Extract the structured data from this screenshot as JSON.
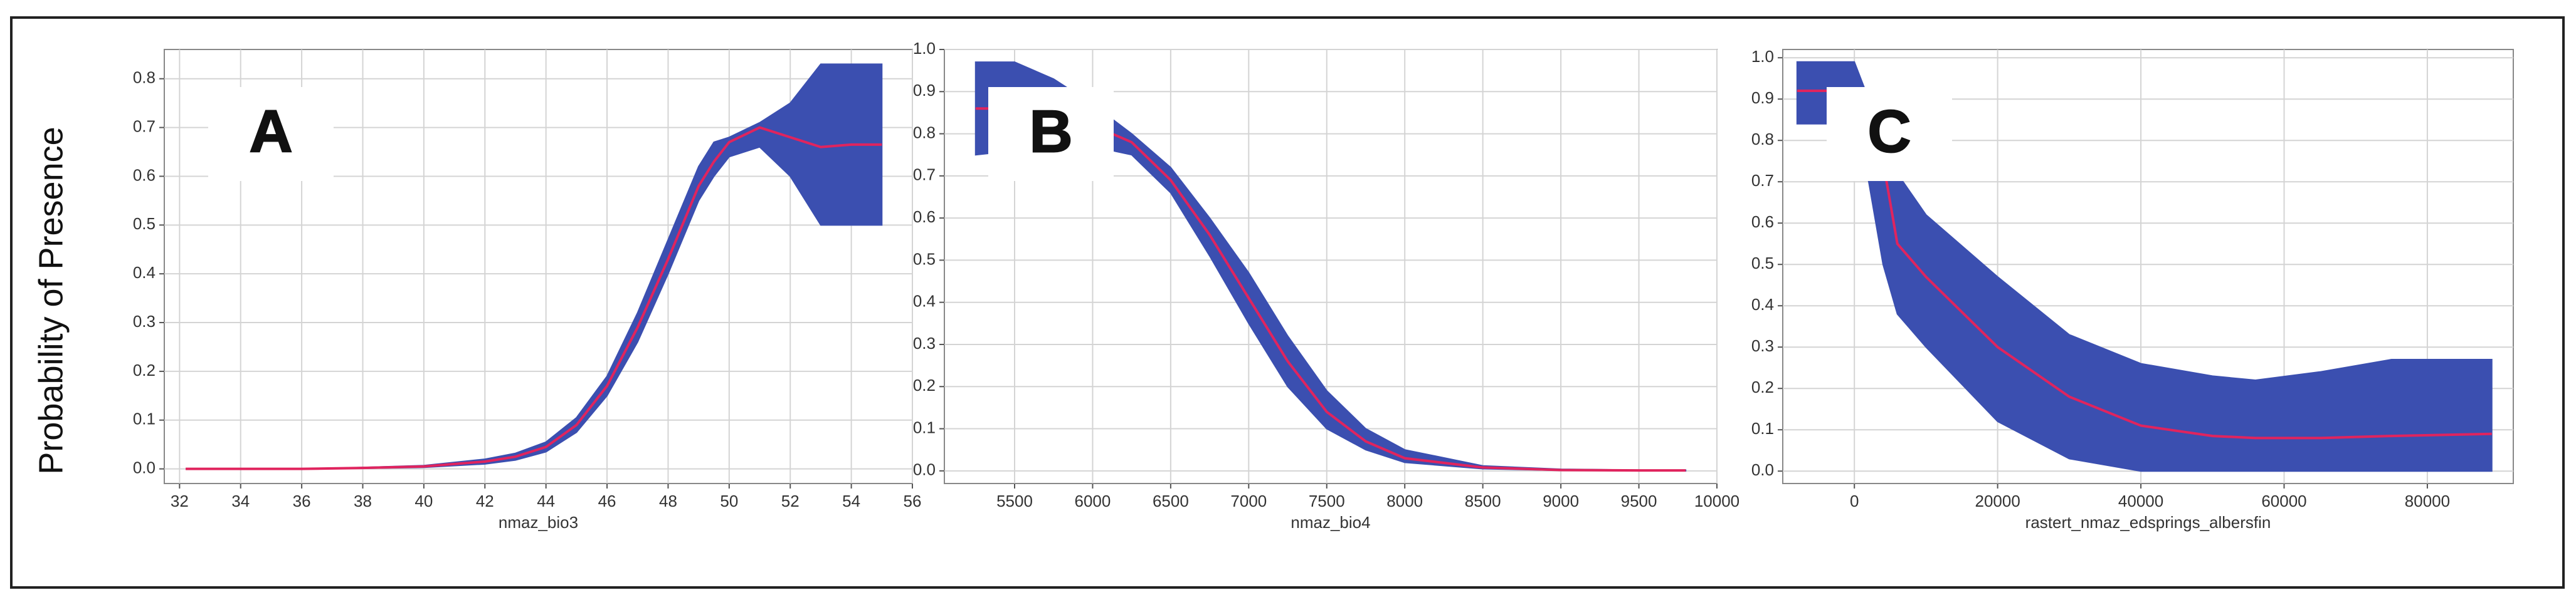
{
  "ylabel": "Probability of Presence",
  "chart_data": [
    {
      "type": "band-line",
      "label": "A",
      "xlabel": "nmaz_bio3",
      "x": [
        32.2,
        34,
        36,
        38,
        40,
        42,
        43,
        44,
        45,
        46,
        47,
        48,
        49,
        49.5,
        50,
        51,
        52,
        53,
        54,
        55
      ],
      "mean": [
        0,
        0,
        0,
        0.002,
        0.005,
        0.015,
        0.025,
        0.045,
        0.09,
        0.17,
        0.29,
        0.43,
        0.58,
        0.63,
        0.67,
        0.7,
        0.68,
        0.66,
        0.665,
        0.665
      ],
      "lower": [
        0,
        0,
        0,
        0.001,
        0.003,
        0.01,
        0.018,
        0.035,
        0.075,
        0.15,
        0.26,
        0.4,
        0.55,
        0.6,
        0.64,
        0.66,
        0.6,
        0.5,
        0.5,
        0.5
      ],
      "upper": [
        0,
        0,
        0,
        0.003,
        0.007,
        0.02,
        0.032,
        0.055,
        0.105,
        0.19,
        0.32,
        0.47,
        0.62,
        0.67,
        0.68,
        0.71,
        0.75,
        0.83,
        0.83,
        0.83
      ],
      "band_color": "#3b4fb0",
      "line_color": "#e0245e",
      "xlim": [
        31.5,
        56
      ],
      "ylim": [
        -0.03,
        0.86
      ],
      "xticks": [
        32,
        34,
        36,
        38,
        40,
        42,
        44,
        46,
        48,
        50,
        52,
        54,
        56
      ],
      "yticks": [
        {
          "value": 0,
          "label": "0.0"
        },
        0.1,
        0.2,
        0.3,
        0.4,
        0.5,
        0.6,
        0.7,
        0.8
      ],
      "grid": true
    },
    {
      "type": "band-line",
      "label": "B",
      "xlabel": "nmaz_bio4",
      "x": [
        5250,
        5500,
        5750,
        6000,
        6250,
        6500,
        6750,
        7000,
        7250,
        7500,
        7750,
        8000,
        8500,
        9000,
        9500,
        9800
      ],
      "mean": [
        0.86,
        0.86,
        0.85,
        0.82,
        0.78,
        0.69,
        0.56,
        0.41,
        0.26,
        0.14,
        0.07,
        0.03,
        0.008,
        0.002,
        0.001,
        0.001
      ],
      "lower": [
        0.75,
        0.76,
        0.77,
        0.77,
        0.75,
        0.66,
        0.51,
        0.35,
        0.2,
        0.1,
        0.05,
        0.02,
        0.005,
        0.001,
        0,
        0
      ],
      "upper": [
        0.97,
        0.97,
        0.93,
        0.87,
        0.8,
        0.72,
        0.6,
        0.47,
        0.32,
        0.19,
        0.1,
        0.05,
        0.012,
        0.004,
        0.002,
        0.002
      ],
      "band_color": "#3b4fb0",
      "line_color": "#e0245e",
      "xlim": [
        5050,
        10000
      ],
      "ylim": [
        -0.03,
        1.0
      ],
      "xticks": [
        5500,
        6000,
        6500,
        7000,
        7500,
        8000,
        8500,
        9000,
        9500,
        10000
      ],
      "yticks": [
        {
          "value": 0,
          "label": "0.0"
        },
        0.1,
        0.2,
        0.3,
        0.4,
        0.5,
        0.6,
        0.7,
        0.8,
        0.9,
        {
          "value": 1,
          "label": "1.0"
        }
      ],
      "grid": true
    },
    {
      "type": "band-line",
      "label": "C",
      "xlabel": "rastert_nmaz_edsprings_albersfin",
      "x": [
        -8000,
        0,
        2000,
        4000,
        6000,
        10000,
        20000,
        30000,
        40000,
        50000,
        56000,
        65000,
        75000,
        89000
      ],
      "mean": [
        0.92,
        0.92,
        0.82,
        0.75,
        0.55,
        0.47,
        0.3,
        0.18,
        0.11,
        0.085,
        0.08,
        0.08,
        0.085,
        0.09
      ],
      "lower": [
        0.84,
        0.84,
        0.7,
        0.5,
        0.38,
        0.3,
        0.12,
        0.03,
        0,
        0,
        0,
        0,
        0,
        0
      ],
      "upper": [
        0.99,
        0.99,
        0.9,
        0.86,
        0.72,
        0.62,
        0.47,
        0.33,
        0.26,
        0.23,
        0.22,
        0.24,
        0.27,
        0.27
      ],
      "band_color": "#3b4fb0",
      "line_color": "#e0245e",
      "xlim": [
        -10000,
        92000
      ],
      "ylim": [
        -0.03,
        1.02
      ],
      "xticks": [
        0,
        20000,
        40000,
        60000,
        80000
      ],
      "yticks": [
        {
          "value": 0,
          "label": "0.0"
        },
        0.1,
        0.2,
        0.3,
        0.4,
        0.5,
        0.6,
        0.7,
        0.8,
        0.9,
        {
          "value": 1,
          "label": "1.0"
        }
      ],
      "grid": true
    }
  ]
}
